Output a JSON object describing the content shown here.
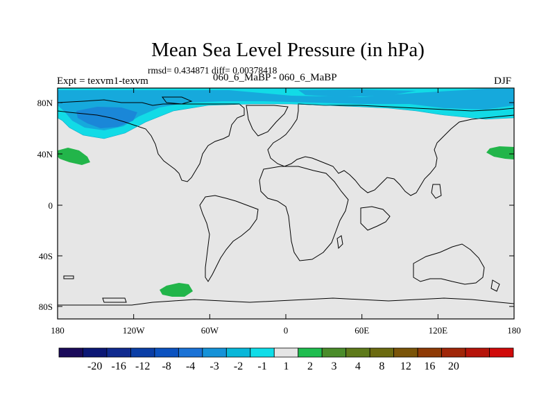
{
  "title": "Mean Sea Level Pressure (in hPa)",
  "stats": "rmsd= 0.434871 diff= 0.00378418",
  "left_label": "Expt = texvm1-texvm",
  "center_label": "060_6_MaBP - 060_6_MaBP",
  "right_label": "DJF",
  "lat_ticks": [
    "80N",
    "40N",
    "0",
    "40S",
    "80S"
  ],
  "lon_ticks": [
    "180",
    "120W",
    "60W",
    "0",
    "60E",
    "120E",
    "180"
  ],
  "colorbar": {
    "colors": [
      "#1a0a5a",
      "#0b1775",
      "#0f2a8f",
      "#0a3ea6",
      "#0b52c0",
      "#1a72d6",
      "#1592d8",
      "#08b7d9",
      "#0fdde8",
      "#e5e5e5",
      "#1fbd4f",
      "#4a8c2a",
      "#5e7a1a",
      "#6b6a10",
      "#7a5408",
      "#8e3a05",
      "#a02608",
      "#b6140a",
      "#d00a0a"
    ],
    "labels": [
      "-20",
      "-16",
      "-12",
      "-8",
      "-4",
      "-3",
      "-2",
      "-1",
      "1",
      "2",
      "3",
      "4",
      "8",
      "12",
      "16",
      "20"
    ]
  },
  "fill_colors": {
    "background": "#e6e6e6",
    "cyan": "#12dbe6",
    "mid_blue": "#16a9dc",
    "blue": "#1a87d8",
    "green": "#22b54a"
  }
}
